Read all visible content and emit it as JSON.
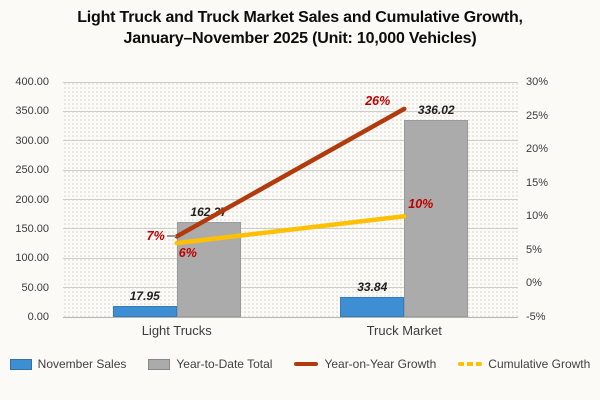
{
  "title": {
    "line1": "Light Truck and Truck Market Sales and Cumulative Growth,",
    "line2": "January–November 2025 (Unit: 10,000 Vehicles)"
  },
  "chart_data": {
    "type": "bar",
    "title": "Light Truck and Truck Market Sales and Cumulative Growth, January–November 2025 (Unit: 10,000 Vehicles)",
    "categories": [
      "Light Trucks",
      "Truck Market"
    ],
    "series": [
      {
        "name": "November Sales",
        "kind": "bar",
        "axis": "left",
        "color": "#3e8ed4",
        "values": [
          17.95,
          33.84
        ],
        "labels": [
          "17.95",
          "33.84"
        ]
      },
      {
        "name": "Year-to-Date Total",
        "kind": "bar",
        "axis": "left",
        "color": "#ababab",
        "values": [
          162.37,
          336.02
        ],
        "labels": [
          "162.37",
          "336.02"
        ]
      },
      {
        "name": "Year-on-Year Growth",
        "kind": "line",
        "axis": "right",
        "color": "#b23b0e",
        "values": [
          7,
          26
        ],
        "labels": [
          "7%",
          "26%"
        ]
      },
      {
        "name": "Cumulative Growth",
        "kind": "line",
        "axis": "right",
        "color": "#ffc000",
        "values": [
          6,
          10
        ],
        "labels": [
          "6%",
          "10%"
        ]
      }
    ],
    "left_axis": {
      "min": 0,
      "max": 400,
      "step": 50,
      "tick_labels": [
        "400.00",
        "350.00",
        "300.00",
        "250.00",
        "200.00",
        "150.00",
        "100.00",
        "50.00",
        "0.00"
      ]
    },
    "right_axis": {
      "min": -5,
      "max": 30,
      "step": 5,
      "tick_labels": [
        "30%",
        "25%",
        "20%",
        "15%",
        "10%",
        "5%",
        "0%",
        "-5%"
      ]
    },
    "grid": true,
    "legend_position": "bottom",
    "annotation_color": "#c00000"
  },
  "legend": {
    "items": [
      {
        "label": "November Sales",
        "marker": "bar-swatch",
        "color": "#3e8ed4"
      },
      {
        "label": "Year-to-Date Total",
        "marker": "bar-swatch",
        "color": "#ababab"
      },
      {
        "label": "Year-on-Year Growth",
        "marker": "solid-line",
        "color": "#b23b0e"
      },
      {
        "label": "Cumulative Growth",
        "marker": "dashed-line",
        "color": "#ffc000"
      }
    ]
  }
}
